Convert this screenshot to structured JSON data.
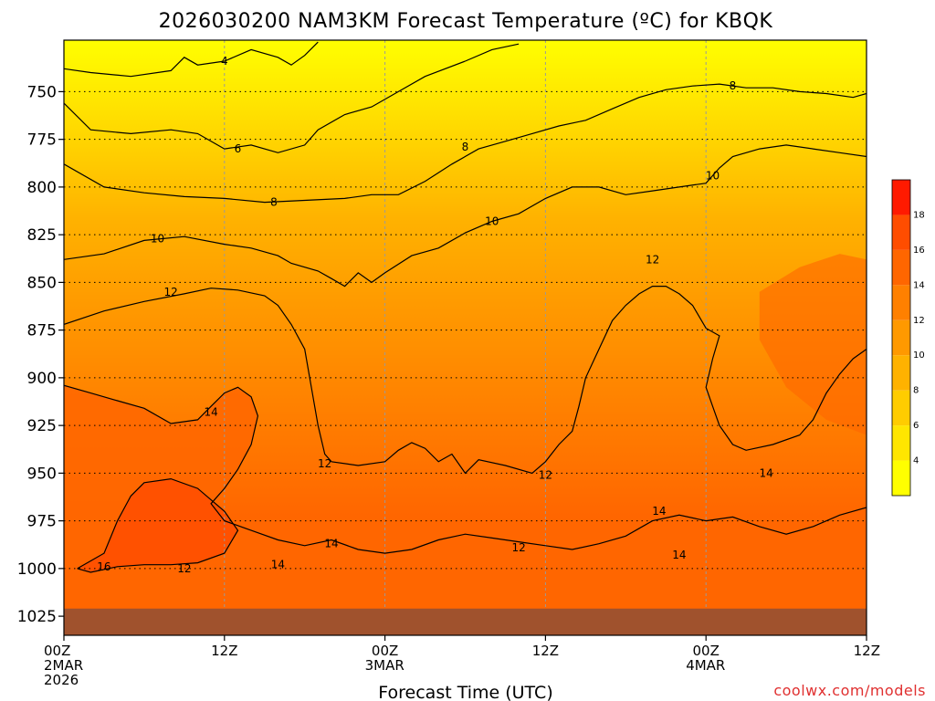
{
  "title": "2026030200 NAM3KM Forecast Temperature (ºC) for KBQK",
  "watermark": "coolwx.com/models",
  "chart_data": {
    "type": "heatmap",
    "title": "2026030200 NAM3KM Forecast Temperature (ºC) for KBQK",
    "xlabel": "Forecast Time (UTC)",
    "ylabel": "",
    "x_ticks": [
      {
        "hour": 0,
        "lines": [
          "00Z",
          "2MAR",
          "2026"
        ]
      },
      {
        "hour": 12,
        "lines": [
          "12Z"
        ]
      },
      {
        "hour": 24,
        "lines": [
          "00Z",
          "3MAR"
        ]
      },
      {
        "hour": 36,
        "lines": [
          "12Z"
        ]
      },
      {
        "hour": 48,
        "lines": [
          "00Z",
          "4MAR"
        ]
      },
      {
        "hour": 60,
        "lines": [
          "12Z"
        ]
      }
    ],
    "y_ticks": [
      750,
      775,
      800,
      825,
      850,
      875,
      900,
      925,
      950,
      975,
      1000,
      1025
    ],
    "xlim": [
      0,
      60
    ],
    "ylim_hpa": [
      723,
      1035
    ],
    "y_axis": "pressure (hPa), decreasing upward",
    "colorbar": {
      "labels": [
        "4",
        "6",
        "8",
        "10",
        "12",
        "14",
        "16",
        "18"
      ],
      "levels": [
        2,
        4,
        6,
        8,
        10,
        12,
        14,
        16,
        18,
        20
      ],
      "colors": [
        "#ffff00",
        "#ffe600",
        "#ffcc00",
        "#ffb200",
        "#ff9900",
        "#ff8000",
        "#ff6600",
        "#ff4d00",
        "#ff1a00"
      ]
    },
    "ground_color": "#a0522d",
    "ground_top_hpa": 1021,
    "contours": [
      {
        "level": 4,
        "label": "4",
        "points": [
          [
            0,
            738
          ],
          [
            2,
            740
          ],
          [
            5,
            742
          ],
          [
            8,
            739
          ],
          [
            9,
            732
          ],
          [
            10,
            736
          ],
          [
            12,
            734
          ],
          [
            14,
            728
          ],
          [
            16,
            732
          ],
          [
            17,
            736
          ],
          [
            18,
            731
          ],
          [
            19,
            724
          ]
        ]
      },
      {
        "level": 6,
        "label": "6",
        "points": [
          [
            0,
            756
          ],
          [
            2,
            770
          ],
          [
            5,
            772
          ],
          [
            8,
            770
          ],
          [
            10,
            772
          ],
          [
            12,
            780
          ],
          [
            14,
            778
          ],
          [
            16,
            782
          ],
          [
            18,
            778
          ],
          [
            19,
            770
          ],
          [
            21,
            762
          ],
          [
            23,
            758
          ],
          [
            25,
            750
          ],
          [
            27,
            742
          ],
          [
            30,
            734
          ],
          [
            32,
            728
          ],
          [
            34,
            725
          ]
        ]
      },
      {
        "level": 8,
        "label": "8",
        "points": [
          [
            0,
            788
          ],
          [
            3,
            800
          ],
          [
            6,
            803
          ],
          [
            9,
            805
          ],
          [
            12,
            806
          ],
          [
            15,
            808
          ],
          [
            18,
            807
          ],
          [
            21,
            806
          ],
          [
            23,
            804
          ],
          [
            25,
            804
          ],
          [
            27,
            797
          ],
          [
            29,
            788
          ],
          [
            31,
            780
          ],
          [
            33,
            776
          ],
          [
            35,
            772
          ],
          [
            37,
            768
          ],
          [
            39,
            765
          ],
          [
            41,
            759
          ],
          [
            43,
            753
          ],
          [
            45,
            749
          ],
          [
            47,
            747
          ],
          [
            49,
            746
          ],
          [
            51,
            748
          ],
          [
            53,
            748
          ],
          [
            55,
            750
          ],
          [
            57,
            751
          ],
          [
            59,
            753
          ],
          [
            60,
            751
          ]
        ]
      },
      {
        "level": 10,
        "label": "10",
        "points": [
          [
            0,
            838
          ],
          [
            3,
            835
          ],
          [
            6,
            828
          ],
          [
            9,
            826
          ],
          [
            12,
            830
          ],
          [
            14,
            832
          ],
          [
            16,
            836
          ],
          [
            17,
            840
          ],
          [
            19,
            844
          ],
          [
            20,
            848
          ],
          [
            21,
            852
          ],
          [
            22,
            845
          ],
          [
            23,
            850
          ],
          [
            24,
            845
          ],
          [
            26,
            836
          ],
          [
            28,
            832
          ],
          [
            30,
            824
          ],
          [
            32,
            818
          ],
          [
            34,
            814
          ],
          [
            36,
            806
          ],
          [
            38,
            800
          ],
          [
            40,
            800
          ],
          [
            42,
            804
          ],
          [
            44,
            802
          ],
          [
            46,
            800
          ],
          [
            48,
            798
          ],
          [
            49,
            790
          ],
          [
            50,
            784
          ],
          [
            52,
            780
          ],
          [
            54,
            778
          ],
          [
            56,
            780
          ],
          [
            58,
            782
          ],
          [
            60,
            784
          ]
        ]
      },
      {
        "level": 12,
        "label": "12",
        "points": [
          [
            0,
            872
          ],
          [
            3,
            865
          ],
          [
            6,
            860
          ],
          [
            9,
            856
          ],
          [
            11,
            853
          ],
          [
            13,
            854
          ],
          [
            15,
            857
          ],
          [
            16,
            862
          ],
          [
            17,
            872
          ],
          [
            18,
            885
          ],
          [
            18.5,
            905
          ],
          [
            19,
            925
          ],
          [
            19.5,
            940
          ],
          [
            20,
            944
          ],
          [
            22,
            946
          ],
          [
            24,
            944
          ],
          [
            25,
            938
          ],
          [
            26,
            934
          ],
          [
            27,
            937
          ],
          [
            28,
            944
          ],
          [
            29,
            940
          ],
          [
            30,
            950
          ],
          [
            31,
            943
          ],
          [
            33,
            946
          ],
          [
            35,
            950
          ],
          [
            36,
            944
          ],
          [
            37,
            935
          ],
          [
            38,
            928
          ],
          [
            38.5,
            915
          ],
          [
            39,
            900
          ],
          [
            40,
            885
          ],
          [
            41,
            870
          ],
          [
            42,
            862
          ],
          [
            43,
            856
          ],
          [
            44,
            852
          ],
          [
            45,
            852
          ],
          [
            46,
            856
          ],
          [
            47,
            862
          ],
          [
            48,
            874
          ],
          [
            49,
            878
          ],
          [
            48.5,
            890
          ],
          [
            48,
            905
          ],
          [
            48.5,
            915
          ],
          [
            49,
            925
          ],
          [
            50,
            935
          ],
          [
            51,
            938
          ],
          [
            53,
            935
          ],
          [
            55,
            930
          ],
          [
            56,
            922
          ],
          [
            57,
            908
          ],
          [
            58,
            898
          ],
          [
            59,
            890
          ],
          [
            60,
            885
          ]
        ]
      },
      {
        "level": 14,
        "label": "14",
        "points": [
          [
            0,
            904
          ],
          [
            2,
            908
          ],
          [
            4,
            912
          ],
          [
            6,
            916
          ],
          [
            8,
            924
          ],
          [
            10,
            922
          ],
          [
            11,
            915
          ],
          [
            12,
            908
          ],
          [
            13,
            905
          ],
          [
            14,
            910
          ],
          [
            14.5,
            920
          ],
          [
            14,
            935
          ],
          [
            13,
            948
          ],
          [
            12,
            958
          ],
          [
            11,
            966
          ],
          [
            12,
            975
          ],
          [
            14,
            980
          ],
          [
            16,
            985
          ],
          [
            18,
            988
          ],
          [
            20,
            985
          ],
          [
            22,
            990
          ],
          [
            24,
            992
          ],
          [
            26,
            990
          ],
          [
            28,
            985
          ],
          [
            30,
            982
          ],
          [
            32,
            984
          ],
          [
            34,
            986
          ],
          [
            36,
            988
          ],
          [
            38,
            990
          ],
          [
            40,
            987
          ],
          [
            42,
            983
          ],
          [
            44,
            975
          ],
          [
            46,
            972
          ],
          [
            48,
            975
          ],
          [
            50,
            973
          ],
          [
            52,
            978
          ],
          [
            54,
            982
          ],
          [
            56,
            978
          ],
          [
            58,
            972
          ],
          [
            60,
            968
          ]
        ]
      },
      {
        "level": 16,
        "label": "16",
        "points": [
          [
            1,
            1000
          ],
          [
            3,
            992
          ],
          [
            4,
            975
          ],
          [
            5,
            962
          ],
          [
            6,
            955
          ],
          [
            8,
            953
          ],
          [
            10,
            958
          ],
          [
            12,
            970
          ],
          [
            13,
            980
          ],
          [
            12,
            992
          ],
          [
            10,
            997
          ],
          [
            8,
            998
          ],
          [
            6,
            998
          ],
          [
            4,
            999
          ],
          [
            2,
            1002
          ],
          [
            1,
            1000
          ]
        ]
      }
    ],
    "contour_labels": [
      {
        "text": "4",
        "hour": 12,
        "hpa": 734
      },
      {
        "text": "6",
        "hour": 13,
        "hpa": 780
      },
      {
        "text": "8",
        "hour": 15.7,
        "hpa": 808
      },
      {
        "text": "8",
        "hour": 30,
        "hpa": 779
      },
      {
        "text": "8",
        "hour": 50,
        "hpa": 747
      },
      {
        "text": "10",
        "hour": 7,
        "hpa": 827
      },
      {
        "text": "10",
        "hour": 32,
        "hpa": 818
      },
      {
        "text": "10",
        "hour": 48.5,
        "hpa": 794
      },
      {
        "text": "12",
        "hour": 8,
        "hpa": 855
      },
      {
        "text": "12",
        "hour": 19.5,
        "hpa": 945
      },
      {
        "text": "12",
        "hour": 36,
        "hpa": 951
      },
      {
        "text": "12",
        "hour": 34,
        "hpa": 989
      },
      {
        "text": "12",
        "hour": 44,
        "hpa": 838
      },
      {
        "text": "12",
        "hour": 9,
        "hpa": 1000
      },
      {
        "text": "14",
        "hour": 11,
        "hpa": 918
      },
      {
        "text": "14",
        "hour": 20,
        "hpa": 987
      },
      {
        "text": "14",
        "hour": 16,
        "hpa": 998
      },
      {
        "text": "14",
        "hour": 44.5,
        "hpa": 970
      },
      {
        "text": "14",
        "hour": 46,
        "hpa": 993
      },
      {
        "text": "14",
        "hour": 52.5,
        "hpa": 950
      },
      {
        "text": "16",
        "hour": 3,
        "hpa": 999
      }
    ]
  }
}
